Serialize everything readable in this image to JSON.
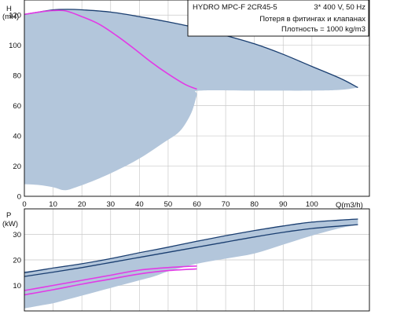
{
  "header": {
    "model": "HYDRO MPC-F 2CR45-5",
    "supply": "3* 400 V, 50 Hz",
    "note_losses": "Потеря в фитингах и клапанах",
    "note_density": "Плотность = 1000 kg/m3"
  },
  "colors": {
    "envelope_fill": "#b3c6db",
    "pump_curve": "#1a3e70",
    "duty_curve": "#e23ae6",
    "grid": "#c9c9c9"
  },
  "chart_data": [
    {
      "type": "line",
      "ylabel_symbol": "H",
      "ylabel_unit": "(mH)",
      "xlabel": "Q(m3/h)",
      "xlim": [
        0,
        120
      ],
      "ylim": [
        0,
        130
      ],
      "x_ticks": [
        0,
        10,
        20,
        30,
        40,
        50,
        60,
        70,
        80,
        90,
        100
      ],
      "y_ticks": [
        0,
        20,
        40,
        60,
        80,
        100,
        120
      ],
      "grid": true,
      "envelope": {
        "upper": [
          [
            0,
            120.5
          ],
          [
            5,
            122
          ],
          [
            10,
            123.5
          ],
          [
            15,
            123.8
          ],
          [
            20,
            123.5
          ],
          [
            30,
            122
          ],
          [
            40,
            119
          ],
          [
            50,
            115.5
          ],
          [
            60,
            111.5
          ],
          [
            70,
            106.5
          ],
          [
            80,
            101
          ],
          [
            90,
            94
          ],
          [
            100,
            86
          ],
          [
            110,
            78
          ],
          [
            116,
            72
          ]
        ],
        "lower": [
          [
            0,
            8
          ],
          [
            5,
            7.5
          ],
          [
            10,
            6
          ],
          [
            14,
            4
          ],
          [
            18,
            6
          ],
          [
            25,
            11
          ],
          [
            32,
            17
          ],
          [
            40,
            25
          ],
          [
            48,
            35
          ],
          [
            54,
            43
          ],
          [
            58,
            55
          ],
          [
            60,
            67
          ],
          [
            61,
            70
          ],
          [
            80,
            70
          ],
          [
            100,
            70
          ],
          [
            110,
            70.5
          ],
          [
            116,
            72
          ]
        ]
      },
      "series": [
        {
          "role": "pump",
          "values": [
            [
              0,
              120.5
            ],
            [
              5,
              122
            ],
            [
              10,
              123.5
            ],
            [
              15,
              123.8
            ],
            [
              20,
              123.5
            ],
            [
              30,
              122
            ],
            [
              40,
              119
            ],
            [
              50,
              115.5
            ],
            [
              60,
              111.5
            ],
            [
              70,
              106.5
            ],
            [
              80,
              101
            ],
            [
              90,
              94
            ],
            [
              100,
              86
            ],
            [
              110,
              78
            ],
            [
              116,
              72
            ]
          ]
        },
        {
          "role": "duty",
          "values": [
            [
              0,
              120.5
            ],
            [
              5,
              122
            ],
            [
              10,
              123
            ],
            [
              14.5,
              122.7
            ],
            [
              20,
              119
            ],
            [
              26,
              114
            ],
            [
              32,
              106.5
            ],
            [
              38,
              98
            ],
            [
              44,
              89
            ],
            [
              50,
              81
            ],
            [
              56,
              74
            ],
            [
              60,
              71
            ]
          ]
        }
      ]
    },
    {
      "type": "line",
      "ylabel_symbol": "P",
      "ylabel_unit": "(kW)",
      "xlim": [
        0,
        120
      ],
      "ylim": [
        0,
        40
      ],
      "y_ticks": [
        10,
        20,
        30
      ],
      "grid": true,
      "envelope": {
        "upper": [
          [
            0,
            15.5
          ],
          [
            10,
            16.5
          ],
          [
            20,
            18.5
          ],
          [
            30,
            20.5
          ],
          [
            40,
            22.5
          ],
          [
            50,
            25
          ],
          [
            60,
            27.5
          ],
          [
            70,
            29.5
          ],
          [
            80,
            31.5
          ],
          [
            90,
            33.5
          ],
          [
            100,
            35
          ],
          [
            110,
            35.8
          ],
          [
            116,
            36.2
          ]
        ],
        "lower": [
          [
            0,
            1
          ],
          [
            5,
            2
          ],
          [
            10,
            3
          ],
          [
            15,
            4.5
          ],
          [
            20,
            6
          ],
          [
            25,
            7.5
          ],
          [
            30,
            9
          ],
          [
            35,
            10.5
          ],
          [
            40,
            12
          ],
          [
            45,
            13.5
          ],
          [
            50,
            15.5
          ],
          [
            55,
            17
          ],
          [
            60,
            18.5
          ],
          [
            70,
            20.5
          ],
          [
            80,
            22.5
          ],
          [
            90,
            26
          ],
          [
            100,
            29.5
          ],
          [
            110,
            32.5
          ],
          [
            116,
            33.8
          ]
        ]
      },
      "series": [
        {
          "role": "pump",
          "values": [
            [
              0,
              15
            ],
            [
              10,
              16.8
            ],
            [
              20,
              18.5
            ],
            [
              30,
              20.5
            ],
            [
              40,
              22.8
            ],
            [
              50,
              25
            ],
            [
              60,
              27.3
            ],
            [
              70,
              29.5
            ],
            [
              80,
              31.5
            ],
            [
              90,
              33.3
            ],
            [
              100,
              34.8
            ],
            [
              110,
              35.6
            ],
            [
              116,
              36
            ]
          ]
        },
        {
          "role": "pump",
          "values": [
            [
              0,
              13.5
            ],
            [
              10,
              15.2
            ],
            [
              20,
              17
            ],
            [
              30,
              19
            ],
            [
              40,
              21
            ],
            [
              50,
              23
            ],
            [
              60,
              25
            ],
            [
              70,
              27
            ],
            [
              80,
              29
            ],
            [
              90,
              30.8
            ],
            [
              100,
              32.3
            ],
            [
              110,
              33.3
            ],
            [
              116,
              33.8
            ]
          ]
        },
        {
          "role": "duty",
          "values": [
            [
              0,
              8
            ],
            [
              10,
              10
            ],
            [
              20,
              12
            ],
            [
              30,
              14
            ],
            [
              40,
              16
            ],
            [
              50,
              17
            ],
            [
              60,
              17.6
            ]
          ]
        },
        {
          "role": "duty",
          "values": [
            [
              0,
              6.3
            ],
            [
              10,
              8.3
            ],
            [
              20,
              10.5
            ],
            [
              30,
              12.5
            ],
            [
              40,
              14.5
            ],
            [
              50,
              15.8
            ],
            [
              60,
              16.5
            ]
          ]
        }
      ]
    }
  ]
}
